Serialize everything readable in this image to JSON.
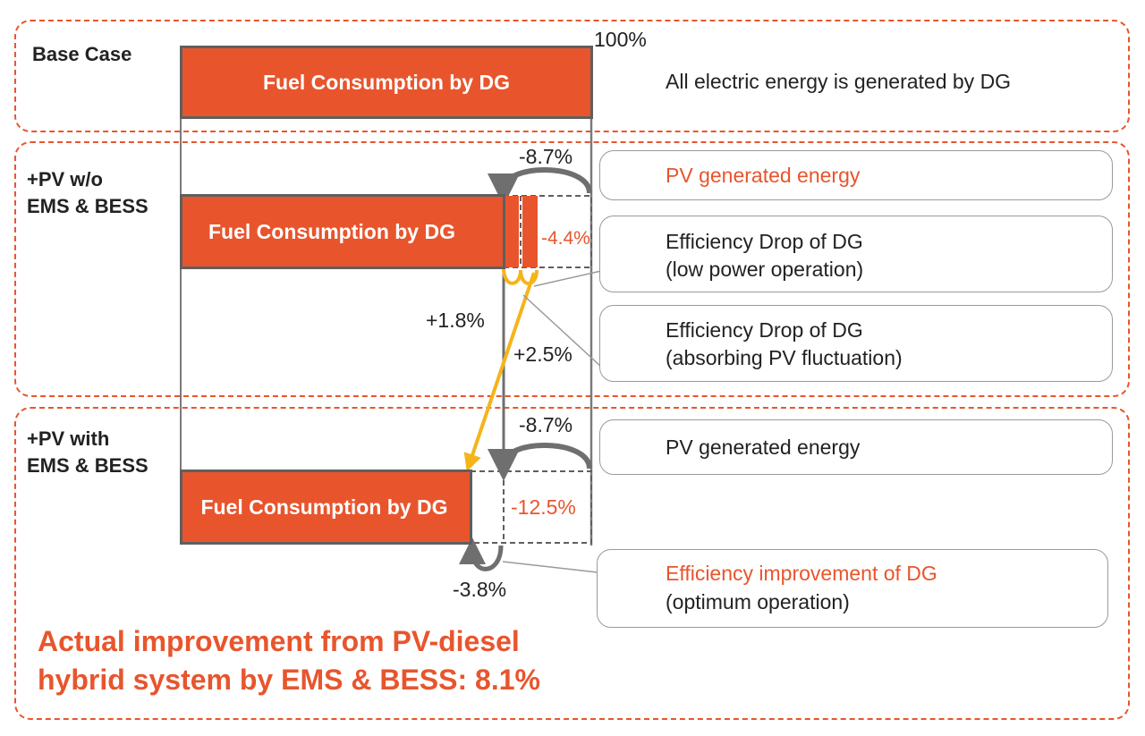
{
  "sections": {
    "base": {
      "label_lines": [
        "Base Case"
      ],
      "bar_label": "Fuel Consumption by DG",
      "percent_label": "100%",
      "description": "All electric energy is generated by DG"
    },
    "pv_without": {
      "label_lines": [
        "+PV w/o",
        "EMS & BESS"
      ],
      "bar_label": "Fuel Consumption by DG",
      "pv_energy": "-8.7%",
      "net_change": "-4.4%",
      "efficiency_drop_low_power": "+1.8%",
      "efficiency_drop_fluctuation": "+2.5%"
    },
    "pv_with": {
      "label_lines": [
        "+PV with",
        "EMS & BESS"
      ],
      "bar_label": "Fuel Consumption by DG",
      "pv_energy": "-8.7%",
      "net_change": "-12.5%",
      "efficiency_improvement": "-3.8%"
    }
  },
  "callouts": [
    {
      "lines": [
        "PV generated energy"
      ],
      "colors": [
        "orange"
      ]
    },
    {
      "lines": [
        "Efficiency Drop of DG",
        "(low power operation)"
      ],
      "colors": [
        "dark",
        "dark"
      ]
    },
    {
      "lines": [
        "Efficiency Drop of DG",
        "(absorbing PV fluctuation)"
      ],
      "colors": [
        "dark",
        "dark"
      ]
    },
    {
      "lines": [
        "PV generated energy"
      ],
      "colors": [
        "dark"
      ]
    },
    {
      "lines": [
        "Efficiency improvement of DG",
        "(optimum operation)"
      ],
      "colors": [
        "orange",
        "dark"
      ]
    }
  ],
  "summary": {
    "lines": [
      "Actual improvement from PV-diesel",
      "hybrid system by EMS & BESS: 8.1%"
    ]
  },
  "colors": {
    "accent": "#e8552d",
    "arrow_gray": "#6f6f6f",
    "arrow_yellow": "#f5b41a",
    "border_gray": "#5f5f5f"
  }
}
